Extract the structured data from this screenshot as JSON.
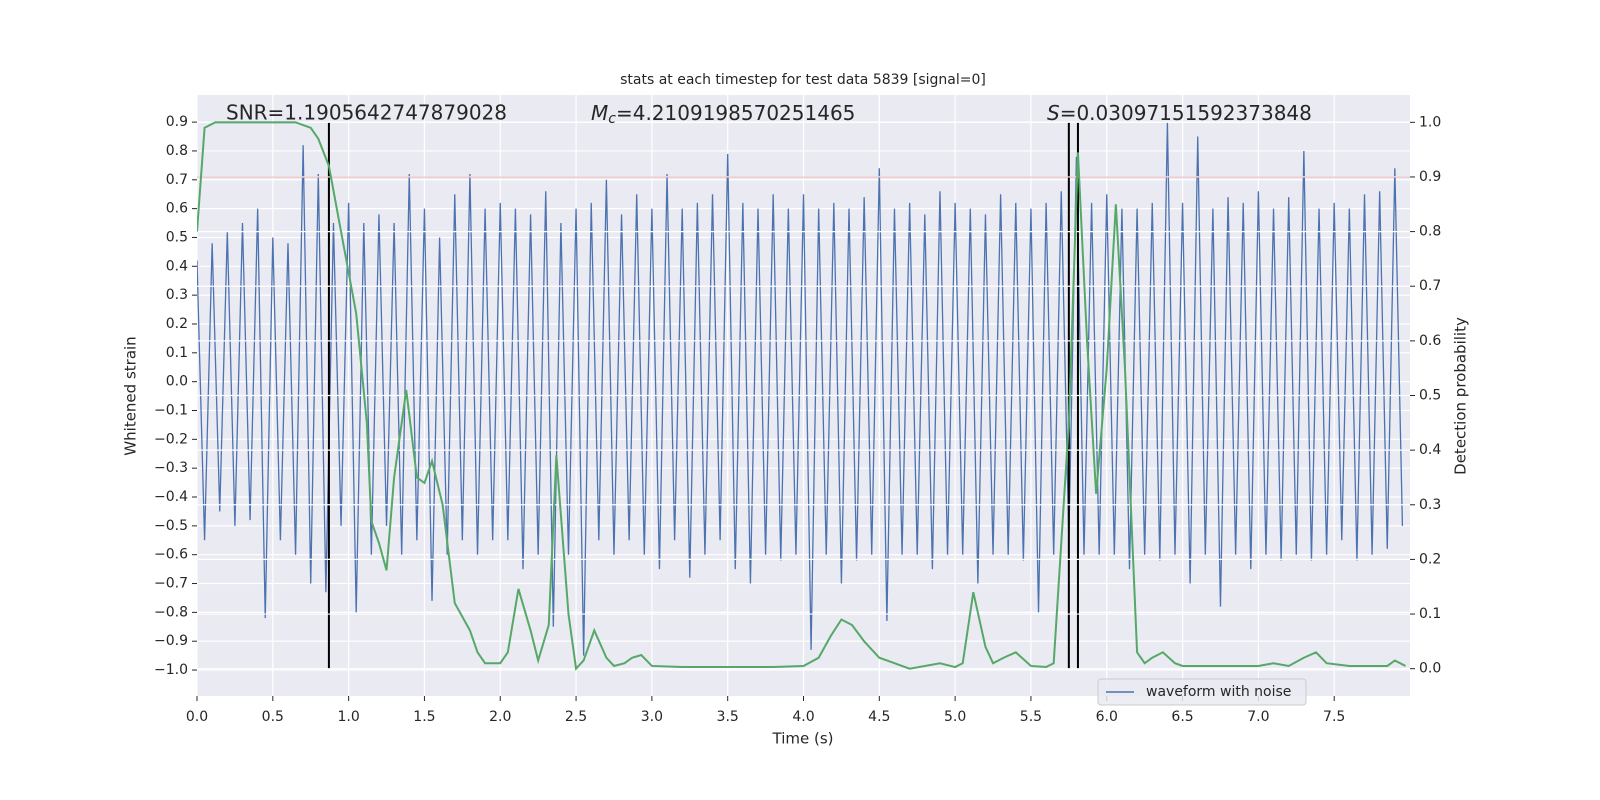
{
  "chart_data": {
    "type": "line",
    "title": "stats at each timestep for test data 5839 [signal=0]",
    "xlabel": "Time (s)",
    "ylabel": "Whitened strain",
    "y2label": "Detection probability",
    "annotations": {
      "snr": "SNR=1.1905642747879028",
      "mc": {
        "symbol": "M",
        "subscript": "c",
        "text": "=4.2109198570251465"
      },
      "s": {
        "symbol": "S",
        "text": "=0.03097151592373848"
      }
    },
    "xlim": [
      0,
      8
    ],
    "ylim": [
      -1.09,
      0.994
    ],
    "y2lim": [
      -0.05,
      1.05
    ],
    "xticks": [
      {
        "value": 0,
        "label": "0.0"
      },
      0.5,
      {
        "value": 1,
        "label": "1.0"
      },
      1.5,
      {
        "value": 2,
        "label": "2.0"
      },
      2.5,
      {
        "value": 3,
        "label": "3.0"
      },
      3.5,
      {
        "value": 4,
        "label": "4.0"
      },
      4.5,
      {
        "value": 5,
        "label": "5.0"
      },
      5.5,
      {
        "value": 6,
        "label": "6.0"
      },
      6.5,
      {
        "value": 7,
        "label": "7.0"
      },
      7.5
    ],
    "yticks": [
      {
        "value": -1,
        "label": "−1.0"
      },
      {
        "value": -0.9,
        "label": "−0.9"
      },
      {
        "value": -0.8,
        "label": "−0.8"
      },
      {
        "value": -0.7,
        "label": "−0.7"
      },
      {
        "value": -0.6,
        "label": "−0.6"
      },
      {
        "value": -0.5,
        "label": "−0.5"
      },
      {
        "value": -0.4,
        "label": "−0.4"
      },
      {
        "value": -0.3,
        "label": "−0.3"
      },
      {
        "value": -0.2,
        "label": "−0.2"
      },
      {
        "value": -0.1,
        "label": "−0.1"
      },
      {
        "value": 0,
        "label": "0.0"
      },
      0.1,
      0.2,
      0.3,
      0.4,
      0.5,
      0.6,
      0.7,
      0.8,
      0.9
    ],
    "y2ticks": [
      {
        "value": 0,
        "label": "0.0"
      },
      0.1,
      0.2,
      0.3,
      0.4,
      0.5,
      0.6,
      0.7,
      0.8,
      0.9,
      {
        "value": 1,
        "label": "1.0"
      }
    ],
    "grid": true,
    "legend": "lower right",
    "hlines": [
      {
        "value": 0.9,
        "axis": "y2",
        "color": "#c44e52"
      }
    ],
    "vlines": [
      {
        "value": 0.87
      },
      {
        "value": 5.75
      },
      {
        "value": 5.81
      }
    ],
    "vline_span": [
      0,
      1
    ],
    "vline_color": "#000000",
    "series": [
      {
        "name": "waveform with noise",
        "color": "#4c72b0",
        "x": [
          0,
          0.05,
          0.1,
          0.15,
          0.2,
          0.25,
          0.3,
          0.35,
          0.4,
          0.45,
          0.5,
          0.55,
          0.6,
          0.65,
          0.7,
          0.75,
          0.8,
          0.85,
          0.9,
          0.95,
          1,
          1.05,
          1.1,
          1.15,
          1.2,
          1.25,
          1.3,
          1.35,
          1.4,
          1.45,
          1.5,
          1.55,
          1.6,
          1.65,
          1.7,
          1.75,
          1.8,
          1.85,
          1.9,
          1.95,
          2,
          2.05,
          2.1,
          2.15,
          2.2,
          2.25,
          2.3,
          2.35,
          2.4,
          2.45,
          2.5,
          2.55,
          2.6,
          2.65,
          2.7,
          2.75,
          2.8,
          2.85,
          2.9,
          2.95,
          3,
          3.05,
          3.1,
          3.15,
          3.2,
          3.25,
          3.3,
          3.35,
          3.4,
          3.45,
          3.5,
          3.55,
          3.6,
          3.65,
          3.7,
          3.75,
          3.8,
          3.85,
          3.9,
          3.95,
          4,
          4.05,
          4.1,
          4.15,
          4.2,
          4.25,
          4.3,
          4.35,
          4.4,
          4.45,
          4.5,
          4.55,
          4.6,
          4.65,
          4.7,
          4.75,
          4.8,
          4.85,
          4.9,
          4.95,
          5,
          5.05,
          5.1,
          5.15,
          5.2,
          5.25,
          5.3,
          5.35,
          5.4,
          5.45,
          5.5,
          5.55,
          5.6,
          5.65,
          5.7,
          5.75,
          5.8,
          5.85,
          5.9,
          5.95,
          6,
          6.05,
          6.1,
          6.15,
          6.2,
          6.25,
          6.3,
          6.35,
          6.4,
          6.45,
          6.5,
          6.55,
          6.6,
          6.65,
          6.7,
          6.75,
          6.8,
          6.85,
          6.9,
          6.95,
          7,
          7.05,
          7.1,
          7.15,
          7.2,
          7.25,
          7.3,
          7.35,
          7.4,
          7.45,
          7.5,
          7.55,
          7.6,
          7.65,
          7.7,
          7.75,
          7.8,
          7.85,
          7.9,
          7.95
        ],
        "values": [
          0.42,
          -0.55,
          0.48,
          -0.45,
          0.52,
          -0.5,
          0.55,
          -0.48,
          0.6,
          -0.82,
          0.5,
          -0.55,
          0.48,
          -0.6,
          0.82,
          -0.7,
          0.72,
          -0.73,
          0.55,
          -0.5,
          0.62,
          -0.8,
          0.55,
          -0.6,
          0.58,
          -0.5,
          0.55,
          -0.6,
          0.72,
          -0.55,
          0.6,
          -0.76,
          0.5,
          -0.6,
          0.65,
          -0.55,
          0.72,
          -0.6,
          0.6,
          -0.55,
          0.62,
          -0.55,
          0.6,
          -0.65,
          0.58,
          -0.6,
          0.66,
          -0.85,
          0.55,
          -0.6,
          0.6,
          -0.95,
          0.62,
          -0.55,
          0.7,
          -0.6,
          0.58,
          -0.55,
          0.65,
          -0.6,
          0.6,
          -0.65,
          0.72,
          -0.55,
          0.6,
          -0.68,
          0.62,
          -0.6,
          0.65,
          -0.55,
          0.79,
          -0.65,
          0.62,
          -0.7,
          0.6,
          -0.6,
          0.65,
          -0.62,
          0.6,
          -0.6,
          0.65,
          -0.93,
          0.6,
          -0.6,
          0.62,
          -0.7,
          0.6,
          -0.62,
          0.64,
          -0.6,
          0.74,
          -0.83,
          0.6,
          -0.6,
          0.62,
          -0.6,
          0.58,
          -0.65,
          0.66,
          -0.6,
          0.62,
          -0.6,
          0.6,
          -0.7,
          0.58,
          -0.6,
          0.65,
          -0.6,
          0.62,
          -0.62,
          0.6,
          -0.8,
          0.62,
          -0.6,
          0.66,
          -0.55,
          0.78,
          -0.6,
          0.62,
          -0.6,
          0.65,
          -0.6,
          0.6,
          -0.65,
          0.6,
          -0.6,
          0.62,
          -0.62,
          0.9,
          -0.6,
          0.62,
          -0.7,
          0.85,
          -0.6,
          0.6,
          -0.78,
          0.64,
          -0.6,
          0.62,
          -0.65,
          0.66,
          -0.6,
          0.6,
          -0.62,
          0.64,
          -0.6,
          0.8,
          -0.62,
          0.6,
          -0.6,
          0.62,
          -0.55,
          0.6,
          -0.62,
          0.65,
          -0.6,
          0.66,
          -0.58,
          0.74,
          -0.5
        ]
      },
      {
        "color": "#55a868",
        "axis": "y2",
        "x": [
          0,
          0.05,
          0.12,
          0.3,
          0.5,
          0.65,
          0.75,
          0.8,
          0.87,
          0.95,
          1.05,
          1.12,
          1.15,
          1.2,
          1.25,
          1.3,
          1.38,
          1.45,
          1.5,
          1.55,
          1.62,
          1.7,
          1.8,
          1.85,
          1.9,
          2,
          2.05,
          2.12,
          2.2,
          2.25,
          2.32,
          2.37,
          2.45,
          2.5,
          2.55,
          2.62,
          2.7,
          2.75,
          2.82,
          2.87,
          2.93,
          3,
          3.2,
          3.5,
          3.8,
          4,
          4.1,
          4.18,
          4.25,
          4.32,
          4.4,
          4.5,
          4.7,
          4.9,
          5,
          5.05,
          5.12,
          5.2,
          5.25,
          5.32,
          5.4,
          5.5,
          5.6,
          5.65,
          5.75,
          5.81,
          5.87,
          5.93,
          6,
          6.06,
          6.12,
          6.2,
          6.25,
          6.3,
          6.37,
          6.45,
          6.5,
          6.7,
          7,
          7.1,
          7.2,
          7.3,
          7.38,
          7.45,
          7.6,
          7.85,
          7.9,
          7.97
        ],
        "values": [
          0.8,
          0.99,
          1,
          1,
          1,
          1,
          0.99,
          0.97,
          0.92,
          0.8,
          0.65,
          0.45,
          0.27,
          0.23,
          0.18,
          0.35,
          0.51,
          0.35,
          0.34,
          0.38,
          0.3,
          0.12,
          0.07,
          0.03,
          0.01,
          0.01,
          0.03,
          0.146,
          0.07,
          0.015,
          0.08,
          0.39,
          0.1,
          0,
          0.015,
          0.07,
          0.02,
          0.005,
          0.01,
          0.02,
          0.025,
          0.005,
          0.003,
          0.003,
          0.003,
          0.005,
          0.02,
          0.06,
          0.09,
          0.08,
          0.05,
          0.02,
          0,
          0.01,
          0.003,
          0.01,
          0.14,
          0.04,
          0.01,
          0.02,
          0.03,
          0.005,
          0.003,
          0.01,
          0.45,
          0.945,
          0.6,
          0.32,
          0.55,
          0.85,
          0.55,
          0.03,
          0.01,
          0.02,
          0.03,
          0.01,
          0.005,
          0.005,
          0.005,
          0.01,
          0.005,
          0.02,
          0.03,
          0.01,
          0.005,
          0.005,
          0.015,
          0.005
        ]
      }
    ]
  }
}
